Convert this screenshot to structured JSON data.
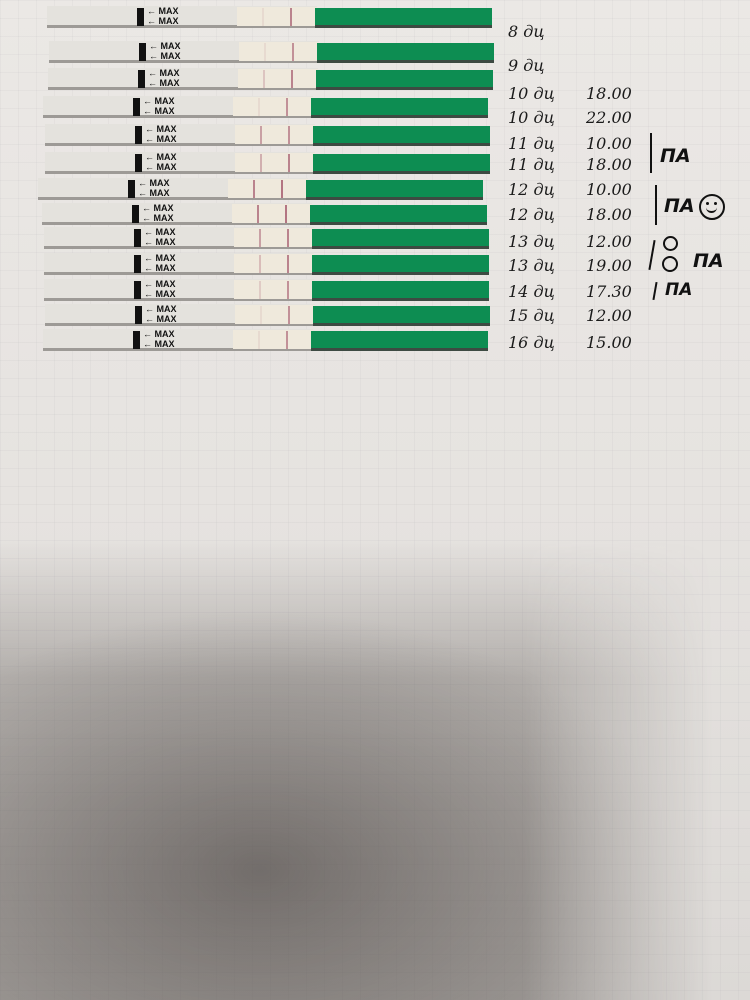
{
  "strips": [
    {
      "label": "MAX",
      "control": 0.1,
      "test": 0.7
    },
    {
      "label": "MAX",
      "control": 0.1,
      "test": 0.6
    },
    {
      "label": "MAX",
      "control": 0.25,
      "test": 0.7
    },
    {
      "label": "MAX",
      "control": 0.1,
      "test": 0.6
    },
    {
      "label": "MAX",
      "control": 0.5,
      "test": 0.6
    },
    {
      "label": "MAX",
      "control": 0.4,
      "test": 0.7
    },
    {
      "label": "MAX",
      "control": 0.7,
      "test": 0.8
    },
    {
      "label": "MAX",
      "control": 0.7,
      "test": 0.8
    },
    {
      "label": "MAX",
      "control": 0.5,
      "test": 0.7
    },
    {
      "label": "MAX",
      "control": 0.3,
      "test": 0.7
    },
    {
      "label": "MAX",
      "control": 0.2,
      "test": 0.6
    },
    {
      "label": "MAX",
      "control": 0.1,
      "test": 0.6
    },
    {
      "label": "MAX",
      "control": 0.1,
      "test": 0.6
    }
  ],
  "notes": [
    {
      "day": "8 дц",
      "time": ""
    },
    {
      "day": "9 дц",
      "time": ""
    },
    {
      "day": "10 дц",
      "time": "18.00"
    },
    {
      "day": "10 дц",
      "time": "22.00"
    },
    {
      "day": "11 дц",
      "time": "10.00"
    },
    {
      "day": "11 дц",
      "time": "18.00"
    },
    {
      "day": "12 дц",
      "time": "10.00"
    },
    {
      "day": "12 дц",
      "time": "18.00"
    },
    {
      "day": "13 дц",
      "time": "12.00"
    },
    {
      "day": "13 дц",
      "time": "19.00"
    },
    {
      "day": "14 дц",
      "time": "17.30"
    },
    {
      "day": "15 дц",
      "time": "12.00"
    },
    {
      "day": "16 дц",
      "time": "15.00"
    }
  ],
  "marks": [
    "ПА",
    "ПА",
    "ПА",
    "ПА"
  ],
  "colors": {
    "strip_green": "#0d8d52",
    "test_line": "#a4576b",
    "paper": "#e9e6e3"
  }
}
